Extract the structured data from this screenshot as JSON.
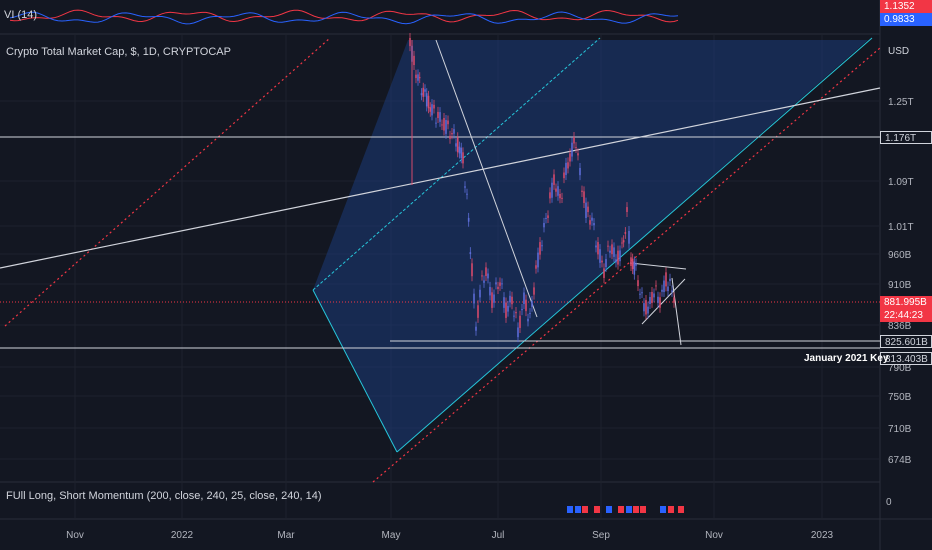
{
  "indicators": {
    "vi": {
      "label": "VI (14)",
      "plus_value": "1.1352",
      "minus_value": "0.9833",
      "plus_color": "#f23645",
      "minus_color": "#2962ff"
    },
    "momentum": {
      "label": "FUll Long, Short Momentum (200, close, 240, 25, close, 240, 14)",
      "axis_zero": "0"
    }
  },
  "chart_data": {
    "type": "candlestick",
    "title": "Crypto Total Market Cap, $, 1D, CRYPTOCAP",
    "currency": "USD",
    "x_ticks": [
      "Nov",
      "2022",
      "Mar",
      "May",
      "Jul",
      "Sep",
      "Nov",
      "2023"
    ],
    "y_ticks": [
      "1.25T",
      "1.09T",
      "1.01T",
      "960B",
      "910B",
      "836B",
      "790B",
      "750B",
      "710B",
      "674B"
    ],
    "price_tags": [
      {
        "label": "1.176T",
        "style": "outline"
      },
      {
        "label": "881.995B",
        "style": "current"
      },
      {
        "label": "22:44:23",
        "style": "timer"
      },
      {
        "label": "825.601B",
        "style": "outline"
      },
      {
        "label": "813.403B",
        "style": "outline"
      }
    ],
    "annotations": [
      {
        "text": "January 2021 Key"
      }
    ],
    "grid": true,
    "log_scale": true
  },
  "colors": {
    "background": "#131722",
    "channel_fill": "#1c3a78",
    "channel_edge": "#26c6da",
    "dotted_red": "#f23645",
    "bull": "#5b6cd6",
    "bear": "#d64a6b"
  }
}
